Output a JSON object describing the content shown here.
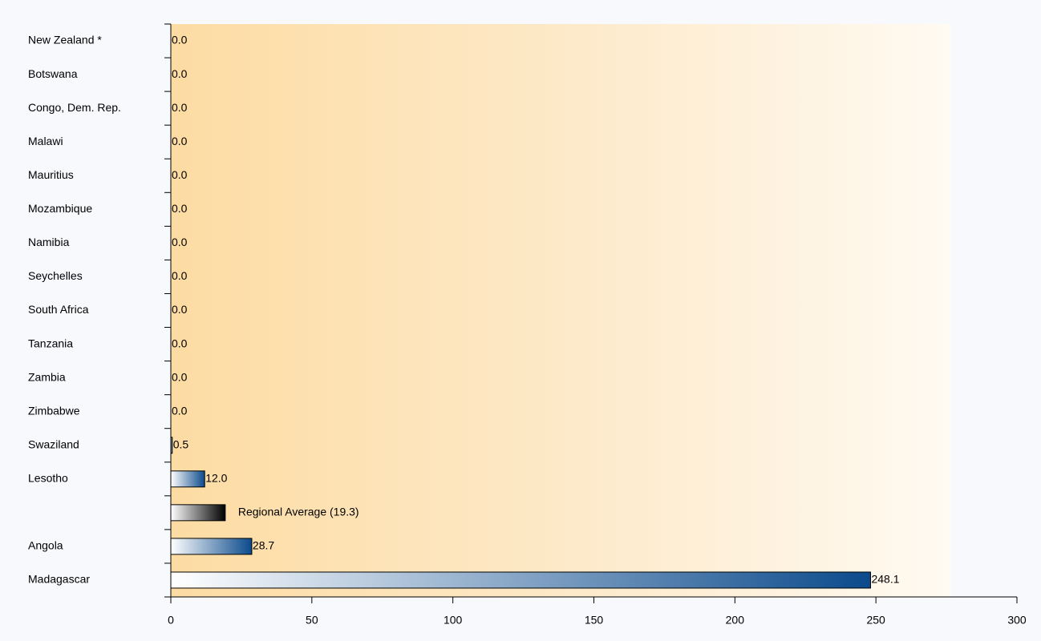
{
  "chart_data": {
    "type": "hbar",
    "categories": [
      "New Zealand *",
      "Botswana",
      "Congo, Dem. Rep.",
      "Malawi",
      "Mauritius",
      "Mozambique",
      "Namibia",
      "Seychelles",
      "South Africa",
      "Tanzania",
      "Zambia",
      "Zimbabwe",
      "Swaziland",
      "Lesotho",
      null,
      "Angola",
      "Madagascar"
    ],
    "values": [
      0,
      0,
      0,
      0,
      0,
      0,
      0,
      0,
      0,
      0,
      0,
      0,
      0.5,
      12,
      19.3,
      28.7,
      248.1
    ],
    "value_labels": [
      "0.0",
      "0.0",
      "0.0",
      "0.0",
      "0.0",
      "0.0",
      "0.0",
      "0.0",
      "0.0",
      "0.0",
      "0.0",
      "0.0",
      "0.5",
      "12.0",
      "Regional Average (19.3)",
      "28.7",
      "248.1"
    ],
    "colors": [
      "#0b4a8c",
      "#0b4a8c",
      "#0b4a8c",
      "#0b4a8c",
      "#0b4a8c",
      "#0b4a8c",
      "#0b4a8c",
      "#0b4a8c",
      "#0b4a8c",
      "#0b4a8c",
      "#0b4a8c",
      "#0b4a8c",
      "#0b4a8c",
      "#0b4a8c",
      "#000000",
      "#0b4a8c",
      "#0b4a8c"
    ],
    "xlim": [
      0,
      300
    ],
    "xticks": [
      0,
      50,
      100,
      150,
      200,
      250,
      300
    ]
  }
}
